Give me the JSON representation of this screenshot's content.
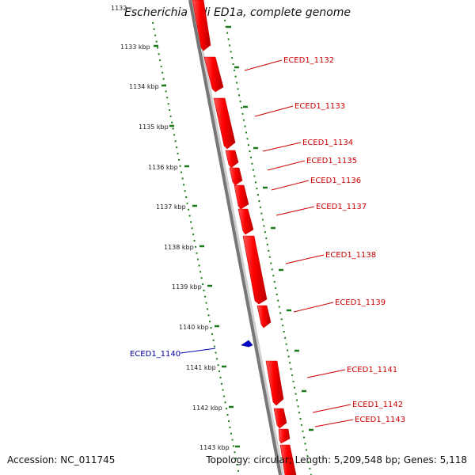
{
  "title": "Escherichia coli ED1a, complete genome",
  "footer": {
    "accession": "Accession: NC_011745",
    "summary": "Topology: circular; Length: 5,209,548 bp; Genes: 5,118"
  },
  "scale": {
    "top_cut_label": "1132",
    "ticks": [
      "1133 kbp",
      "1134 kbp",
      "1135 kbp",
      "1136 kbp",
      "1137 kbp",
      "1138 kbp",
      "1139 kbp",
      "1140 kbp",
      "1141 kbp",
      "1142 kbp",
      "1143 kbp"
    ]
  },
  "genes": [
    {
      "label": "ECED1_1132",
      "strand": "forward"
    },
    {
      "label": "ECED1_1133",
      "strand": "forward"
    },
    {
      "label": "ECED1_1134",
      "strand": "forward"
    },
    {
      "label": "ECED1_1135",
      "strand": "forward"
    },
    {
      "label": "ECED1_1136",
      "strand": "forward"
    },
    {
      "label": "ECED1_1137",
      "strand": "forward"
    },
    {
      "label": "ECED1_1138",
      "strand": "forward"
    },
    {
      "label": "ECED1_1139",
      "strand": "forward"
    },
    {
      "label": "ECED1_1140",
      "strand": "reverse"
    },
    {
      "label": "ECED1_1141",
      "strand": "forward"
    },
    {
      "label": "ECED1_1142",
      "strand": "forward"
    },
    {
      "label": "ECED1_1143",
      "strand": "forward"
    }
  ],
  "colors": {
    "forward_gene": "#ff0000",
    "reverse_gene": "#0000cc",
    "backbone": "#777777",
    "tick": "#1a7a1a"
  }
}
